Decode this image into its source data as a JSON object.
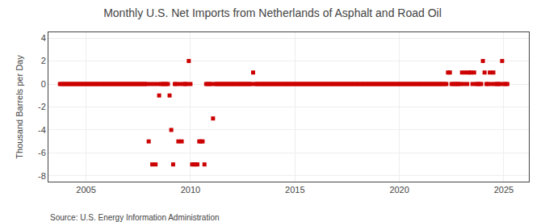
{
  "chart_data": {
    "type": "scatter",
    "title": "Monthly U.S. Net Imports from Netherlands of Asphalt and Road Oil",
    "ylabel": "Thousand Barrels per Day",
    "annotation": "Source: U.S. Energy Information Administration",
    "color": "#cc0000",
    "marker": "square",
    "grid": true,
    "xlim": [
      2003.2,
      2026.2
    ],
    "ylim": [
      -8.5,
      4.5
    ],
    "xticks": [
      2005,
      2010,
      2015,
      2020,
      2025
    ],
    "yticks": [
      -8,
      -6,
      -4,
      -2,
      0,
      2,
      4
    ],
    "x": [
      2003.75,
      2003.83,
      2003.92,
      2004.0,
      2004.08,
      2004.17,
      2004.25,
      2004.33,
      2004.42,
      2004.5,
      2004.58,
      2004.67,
      2004.75,
      2004.83,
      2004.92,
      2005.0,
      2005.08,
      2005.17,
      2005.25,
      2005.33,
      2005.42,
      2005.5,
      2005.58,
      2005.67,
      2005.75,
      2005.83,
      2005.92,
      2006.0,
      2006.08,
      2006.17,
      2006.25,
      2006.33,
      2006.42,
      2006.5,
      2006.58,
      2006.67,
      2006.75,
      2006.83,
      2006.92,
      2007.0,
      2007.08,
      2007.17,
      2007.25,
      2007.33,
      2007.42,
      2007.5,
      2007.58,
      2007.67,
      2007.75,
      2007.83,
      2007.92,
      2008.0,
      2008.08,
      2008.17,
      2008.25,
      2008.33,
      2008.42,
      2008.5,
      2008.58,
      2008.67,
      2008.75,
      2008.83,
      2008.92,
      2009.0,
      2009.08,
      2009.17,
      2009.25,
      2009.33,
      2009.42,
      2009.5,
      2009.58,
      2009.67,
      2009.75,
      2009.83,
      2009.92,
      2010.0,
      2010.08,
      2010.17,
      2010.25,
      2010.33,
      2010.42,
      2010.5,
      2010.58,
      2010.67,
      2010.75,
      2010.83,
      2010.92,
      2011.0,
      2011.08,
      2011.17,
      2011.25,
      2011.33,
      2011.42,
      2011.5,
      2011.58,
      2011.67,
      2011.75,
      2011.83,
      2011.92,
      2012.0,
      2012.08,
      2012.17,
      2012.25,
      2012.33,
      2012.42,
      2012.5,
      2012.58,
      2012.67,
      2012.75,
      2012.83,
      2012.92,
      2013.0,
      2013.08,
      2013.17,
      2013.25,
      2013.33,
      2013.42,
      2013.5,
      2013.58,
      2013.67,
      2013.75,
      2013.83,
      2013.92,
      2014.0,
      2014.08,
      2014.17,
      2014.25,
      2014.33,
      2014.42,
      2014.5,
      2014.58,
      2014.67,
      2014.75,
      2014.83,
      2014.92,
      2015.0,
      2015.08,
      2015.17,
      2015.25,
      2015.33,
      2015.42,
      2015.5,
      2015.58,
      2015.67,
      2015.75,
      2015.83,
      2015.92,
      2016.0,
      2016.08,
      2016.17,
      2016.25,
      2016.33,
      2016.42,
      2016.5,
      2016.58,
      2016.67,
      2016.75,
      2016.83,
      2016.92,
      2017.0,
      2017.08,
      2017.17,
      2017.25,
      2017.33,
      2017.42,
      2017.5,
      2017.58,
      2017.67,
      2017.75,
      2017.83,
      2017.92,
      2018.0,
      2018.08,
      2018.17,
      2018.25,
      2018.33,
      2018.42,
      2018.5,
      2018.58,
      2018.67,
      2018.75,
      2018.83,
      2018.92,
      2019.0,
      2019.08,
      2019.17,
      2019.25,
      2019.33,
      2019.42,
      2019.5,
      2019.58,
      2019.67,
      2019.75,
      2019.83,
      2019.92,
      2020.0,
      2020.08,
      2020.17,
      2020.25,
      2020.33,
      2020.42,
      2020.5,
      2020.58,
      2020.67,
      2020.75,
      2020.83,
      2020.92,
      2021.0,
      2021.08,
      2021.17,
      2021.25,
      2021.33,
      2021.42,
      2021.5,
      2021.58,
      2021.67,
      2021.75,
      2021.83,
      2021.92,
      2022.0,
      2022.08,
      2022.17,
      2022.25,
      2022.33,
      2022.42,
      2022.5,
      2022.58,
      2022.67,
      2022.75,
      2022.83,
      2022.92,
      2023.0,
      2023.08,
      2023.17,
      2023.25,
      2023.33,
      2023.42,
      2023.5,
      2023.58,
      2023.67,
      2023.75,
      2023.83,
      2023.92,
      2024.0,
      2024.08,
      2024.17,
      2024.25,
      2024.33,
      2024.42,
      2024.5,
      2024.58,
      2024.67,
      2024.75,
      2024.83,
      2024.92,
      2025.0,
      2025.08,
      2025.17
    ],
    "values": [
      0,
      0,
      0,
      0,
      0,
      0,
      0,
      0,
      0,
      0,
      0,
      0,
      0,
      0,
      0,
      0,
      0,
      0,
      0,
      0,
      0,
      0,
      0,
      0,
      0,
      0,
      0,
      0,
      0,
      0,
      0,
      0,
      0,
      0,
      0,
      0,
      0,
      0,
      0,
      0,
      0,
      0,
      0,
      0,
      0,
      0,
      0,
      0,
      0,
      0,
      0,
      -5,
      0,
      -7,
      0,
      -7,
      0,
      -1,
      0,
      0,
      0,
      0,
      0,
      -1,
      -4,
      -7,
      0,
      0,
      -5,
      0,
      -5,
      0,
      0,
      0,
      2,
      0,
      -7,
      -7,
      -7,
      -7,
      -5,
      -5,
      -5,
      -7,
      0,
      0,
      0,
      0,
      -3,
      0,
      0,
      0,
      0,
      0,
      0,
      0,
      0,
      0,
      0,
      0,
      0,
      0,
      0,
      0,
      0,
      0,
      0,
      0,
      0,
      0,
      0,
      1,
      0,
      0,
      0,
      0,
      0,
      0,
      0,
      0,
      0,
      0,
      0,
      0,
      0,
      0,
      0,
      0,
      0,
      0,
      0,
      0,
      0,
      0,
      0,
      0,
      0,
      0,
      0,
      0,
      0,
      0,
      0,
      0,
      0,
      0,
      0,
      0,
      0,
      0,
      0,
      0,
      0,
      0,
      0,
      0,
      0,
      0,
      0,
      0,
      0,
      0,
      0,
      0,
      0,
      0,
      0,
      0,
      0,
      0,
      0,
      0,
      0,
      0,
      0,
      0,
      0,
      0,
      0,
      0,
      0,
      0,
      0,
      0,
      0,
      0,
      0,
      0,
      0,
      0,
      0,
      0,
      0,
      0,
      0,
      0,
      0,
      0,
      0,
      0,
      0,
      0,
      0,
      0,
      0,
      0,
      0,
      0,
      0,
      0,
      0,
      0,
      0,
      0,
      0,
      0,
      0,
      0,
      0,
      0,
      0,
      0,
      0,
      1,
      1,
      0,
      0,
      0,
      0,
      0,
      0,
      1,
      0,
      1,
      0,
      1,
      1,
      0,
      1,
      0,
      0,
      0,
      0,
      2,
      1,
      0,
      0,
      1,
      0,
      1,
      0,
      0,
      0,
      0,
      2,
      0,
      0,
      0
    ]
  }
}
